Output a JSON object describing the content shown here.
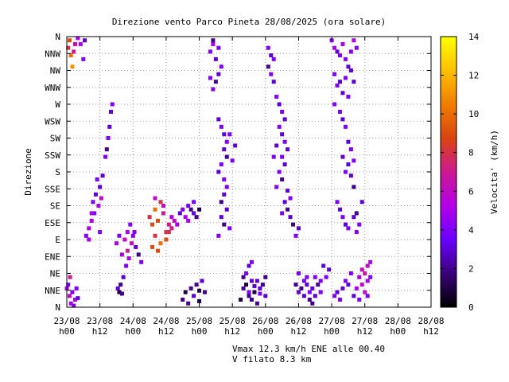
{
  "chart_data": {
    "type": "scatter",
    "title": "Direzione vento Parco Pineta 28/08/2025 (ora solare)",
    "ylabel": "Direzione",
    "y_categories": [
      "N",
      "NNE",
      "NE",
      "ENE",
      "E",
      "ESE",
      "SE",
      "SSE",
      "S",
      "SSW",
      "SW",
      "WSW",
      "W",
      "WNW",
      "NW",
      "NNW",
      "N"
    ],
    "x_ticks": [
      {
        "day": "23/08",
        "hour": "h00"
      },
      {
        "day": "23/08",
        "hour": "h12"
      },
      {
        "day": "24/08",
        "hour": "h00"
      },
      {
        "day": "24/08",
        "hour": "h12"
      },
      {
        "day": "25/08",
        "hour": "h00"
      },
      {
        "day": "25/08",
        "hour": "h12"
      },
      {
        "day": "26/08",
        "hour": "h00"
      },
      {
        "day": "26/08",
        "hour": "h12"
      },
      {
        "day": "27/08",
        "hour": "h00"
      },
      {
        "day": "27/08",
        "hour": "h12"
      },
      {
        "day": "28/08",
        "hour": "h00"
      },
      {
        "day": "28/08",
        "hour": "h12"
      }
    ],
    "xlim_hours": [
      0,
      132
    ],
    "ylim_deg": [
      0,
      360
    ],
    "grid": true,
    "colorbar": {
      "label": "Velocita' (km/h)",
      "min": 0,
      "max": 14,
      "ticks": [
        "0",
        "2",
        "4",
        "6",
        "8",
        "10",
        "12",
        "14"
      ],
      "colors": [
        "#000000",
        "#3a0078",
        "#6a00ff",
        "#b400e8",
        "#cc1a90",
        "#d94410",
        "#ef7e00",
        "#ffc000",
        "#ffff00"
      ]
    },
    "points": [
      [
        0.5,
        345,
        8
      ],
      [
        1,
        355,
        9
      ],
      [
        1.5,
        335,
        10
      ],
      [
        2,
        320,
        11
      ],
      [
        2.5,
        340,
        7
      ],
      [
        3,
        350,
        6
      ],
      [
        4,
        358,
        5
      ],
      [
        5,
        350,
        5
      ],
      [
        6,
        330,
        4
      ],
      [
        6.5,
        355,
        3
      ],
      [
        0.5,
        30,
        4
      ],
      [
        1,
        15,
        6
      ],
      [
        1.5,
        5,
        5
      ],
      [
        2,
        20,
        4
      ],
      [
        3,
        10,
        5
      ],
      [
        3.5,
        25,
        4
      ],
      [
        4,
        12,
        3
      ],
      [
        2.5,
        2,
        4
      ],
      [
        1.2,
        40,
        7
      ],
      [
        0,
        25,
        5
      ],
      [
        7,
        95,
        4
      ],
      [
        8,
        105,
        5
      ],
      [
        9,
        115,
        5
      ],
      [
        10,
        125,
        4
      ],
      [
        9.5,
        140,
        4
      ],
      [
        10.5,
        150,
        3
      ],
      [
        11,
        170,
        4
      ],
      [
        12,
        160,
        3
      ],
      [
        13,
        175,
        3
      ],
      [
        14,
        200,
        4
      ],
      [
        15,
        225,
        4
      ],
      [
        15.5,
        240,
        3
      ],
      [
        16,
        260,
        3
      ],
      [
        16.5,
        270,
        4
      ],
      [
        14.5,
        210,
        2
      ],
      [
        11.5,
        135,
        5
      ],
      [
        12.5,
        145,
        6
      ],
      [
        9,
        125,
        5
      ],
      [
        8,
        90,
        5
      ],
      [
        12,
        100,
        4
      ],
      [
        18,
        85,
        5
      ],
      [
        19,
        95,
        4
      ],
      [
        20,
        70,
        5
      ],
      [
        21,
        90,
        6
      ],
      [
        22,
        100,
        5
      ],
      [
        23,
        110,
        4
      ],
      [
        24,
        95,
        4
      ],
      [
        25,
        80,
        3
      ],
      [
        26,
        70,
        2
      ],
      [
        27,
        60,
        4
      ],
      [
        18.5,
        25,
        3
      ],
      [
        19.5,
        30,
        2
      ],
      [
        20.5,
        40,
        3
      ],
      [
        21.5,
        55,
        4
      ],
      [
        22.5,
        65,
        5
      ],
      [
        23.5,
        85,
        6
      ],
      [
        22,
        75,
        7
      ],
      [
        24.5,
        100,
        4
      ],
      [
        19,
        20,
        1
      ],
      [
        20,
        18,
        2
      ],
      [
        30,
        120,
        8
      ],
      [
        31,
        110,
        9
      ],
      [
        32,
        130,
        10
      ],
      [
        33,
        115,
        9
      ],
      [
        34,
        140,
        8
      ],
      [
        35,
        125,
        7
      ],
      [
        36,
        100,
        8
      ],
      [
        37,
        110,
        7
      ],
      [
        35,
        135,
        6
      ],
      [
        38,
        120,
        5
      ],
      [
        31,
        80,
        9
      ],
      [
        32,
        95,
        8
      ],
      [
        33,
        75,
        9
      ],
      [
        34,
        85,
        10
      ],
      [
        36,
        90,
        9
      ],
      [
        37,
        100,
        8
      ],
      [
        38,
        105,
        7
      ],
      [
        39,
        115,
        6
      ],
      [
        40,
        110,
        5
      ],
      [
        32,
        145,
        6
      ],
      [
        41,
        125,
        3
      ],
      [
        42,
        130,
        4
      ],
      [
        43,
        120,
        5
      ],
      [
        44,
        135,
        4
      ],
      [
        45,
        130,
        2
      ],
      [
        46,
        125,
        3
      ],
      [
        47,
        120,
        2
      ],
      [
        48,
        130,
        1
      ],
      [
        46,
        140,
        4
      ],
      [
        44,
        115,
        5
      ],
      [
        42,
        10,
        2
      ],
      [
        43,
        20,
        1
      ],
      [
        45,
        25,
        2
      ],
      [
        46,
        15,
        3
      ],
      [
        47,
        30,
        2
      ],
      [
        48,
        22,
        1
      ],
      [
        49,
        35,
        3
      ],
      [
        50,
        20,
        2
      ],
      [
        44,
        5,
        2
      ],
      [
        48,
        8,
        1
      ],
      [
        52,
        340,
        4
      ],
      [
        53,
        350,
        5
      ],
      [
        54,
        330,
        3
      ],
      [
        55,
        345,
        4
      ],
      [
        53,
        355,
        2
      ],
      [
        56,
        320,
        4
      ],
      [
        55,
        310,
        3
      ],
      [
        54,
        300,
        2
      ],
      [
        53,
        290,
        4
      ],
      [
        52,
        305,
        4
      ],
      [
        55,
        250,
        3
      ],
      [
        56,
        240,
        4
      ],
      [
        57,
        230,
        3
      ],
      [
        58,
        220,
        4
      ],
      [
        57,
        210,
        3
      ],
      [
        58,
        200,
        2
      ],
      [
        56,
        190,
        4
      ],
      [
        55,
        180,
        3
      ],
      [
        57,
        170,
        4
      ],
      [
        58,
        160,
        4
      ],
      [
        57,
        150,
        3
      ],
      [
        56,
        140,
        2
      ],
      [
        58,
        130,
        3
      ],
      [
        57,
        110,
        2
      ],
      [
        55,
        95,
        4
      ],
      [
        56,
        120,
        3
      ],
      [
        59,
        105,
        4
      ],
      [
        60,
        195,
        4
      ],
      [
        61,
        215,
        3
      ],
      [
        59,
        230,
        4
      ],
      [
        63,
        10,
        1
      ],
      [
        64,
        25,
        2
      ],
      [
        65,
        30,
        1
      ],
      [
        66,
        15,
        2
      ],
      [
        67,
        35,
        3
      ],
      [
        68,
        20,
        1
      ],
      [
        69,
        5,
        2
      ],
      [
        70,
        25,
        3
      ],
      [
        71,
        30,
        2
      ],
      [
        72,
        15,
        3
      ],
      [
        65,
        45,
        4
      ],
      [
        66,
        55,
        3
      ],
      [
        67,
        60,
        4
      ],
      [
        64,
        40,
        2
      ],
      [
        66,
        20,
        4
      ],
      [
        68,
        28,
        3
      ],
      [
        70,
        18,
        4
      ],
      [
        72,
        40,
        2
      ],
      [
        67,
        10,
        2
      ],
      [
        69,
        35,
        3
      ],
      [
        73,
        345,
        4
      ],
      [
        74,
        335,
        3
      ],
      [
        75,
        330,
        4
      ],
      [
        73,
        320,
        2
      ],
      [
        74,
        310,
        4
      ],
      [
        75,
        300,
        3
      ],
      [
        76,
        280,
        4
      ],
      [
        77,
        270,
        3
      ],
      [
        78,
        260,
        4
      ],
      [
        79,
        250,
        3
      ],
      [
        77,
        240,
        4
      ],
      [
        78,
        230,
        3
      ],
      [
        79,
        220,
        4
      ],
      [
        80,
        210,
        3
      ],
      [
        78,
        200,
        4
      ],
      [
        79,
        190,
        3
      ],
      [
        77,
        180,
        4
      ],
      [
        78,
        170,
        2
      ],
      [
        80,
        155,
        3
      ],
      [
        76,
        160,
        4
      ],
      [
        79,
        140,
        3
      ],
      [
        80,
        130,
        2
      ],
      [
        81,
        120,
        3
      ],
      [
        82,
        110,
        2
      ],
      [
        83,
        95,
        4
      ],
      [
        84,
        105,
        3
      ],
      [
        81,
        145,
        4
      ],
      [
        78,
        125,
        4
      ],
      [
        75,
        200,
        4
      ],
      [
        76,
        215,
        3
      ],
      [
        83,
        30,
        2
      ],
      [
        84,
        20,
        3
      ],
      [
        85,
        25,
        2
      ],
      [
        86,
        35,
        4
      ],
      [
        87,
        30,
        3
      ],
      [
        88,
        20,
        4
      ],
      [
        89,
        25,
        3
      ],
      [
        90,
        40,
        4
      ],
      [
        91,
        30,
        2
      ],
      [
        92,
        20,
        4
      ],
      [
        86,
        15,
        3
      ],
      [
        88,
        10,
        2
      ],
      [
        84,
        45,
        4
      ],
      [
        90,
        15,
        3
      ],
      [
        92,
        35,
        4
      ],
      [
        93,
        55,
        3
      ],
      [
        94,
        40,
        4
      ],
      [
        95,
        50,
        3
      ],
      [
        87,
        40,
        4
      ],
      [
        89,
        5,
        2
      ],
      [
        96,
        355,
        4
      ],
      [
        97,
        345,
        5
      ],
      [
        98,
        340,
        3
      ],
      [
        99,
        335,
        4
      ],
      [
        100,
        350,
        5
      ],
      [
        101,
        330,
        4
      ],
      [
        102,
        320,
        3
      ],
      [
        103,
        340,
        4
      ],
      [
        104,
        355,
        5
      ],
      [
        105,
        345,
        4
      ],
      [
        97,
        310,
        4
      ],
      [
        99,
        300,
        3
      ],
      [
        101,
        305,
        4
      ],
      [
        103,
        315,
        3
      ],
      [
        98,
        295,
        4
      ],
      [
        100,
        285,
        3
      ],
      [
        102,
        280,
        4
      ],
      [
        104,
        300,
        3
      ],
      [
        97,
        270,
        4
      ],
      [
        99,
        260,
        4
      ],
      [
        100,
        250,
        3
      ],
      [
        101,
        240,
        4
      ],
      [
        102,
        220,
        3
      ],
      [
        103,
        210,
        4
      ],
      [
        104,
        195,
        4
      ],
      [
        102,
        190,
        3
      ],
      [
        100,
        200,
        3
      ],
      [
        101,
        180,
        4
      ],
      [
        103,
        175,
        3
      ],
      [
        104,
        160,
        2
      ],
      [
        98,
        140,
        4
      ],
      [
        99,
        130,
        3
      ],
      [
        100,
        120,
        4
      ],
      [
        101,
        110,
        3
      ],
      [
        102,
        105,
        4
      ],
      [
        104,
        120,
        3
      ],
      [
        105,
        125,
        2
      ],
      [
        106,
        110,
        4
      ],
      [
        107,
        140,
        3
      ],
      [
        105,
        100,
        4
      ],
      [
        97,
        15,
        4
      ],
      [
        98,
        20,
        3
      ],
      [
        99,
        10,
        4
      ],
      [
        100,
        25,
        3
      ],
      [
        101,
        35,
        4
      ],
      [
        102,
        30,
        3
      ],
      [
        103,
        45,
        4
      ],
      [
        104,
        15,
        3
      ],
      [
        105,
        25,
        5
      ],
      [
        106,
        10,
        4
      ],
      [
        107,
        30,
        6
      ],
      [
        108,
        45,
        7
      ],
      [
        109,
        55,
        6
      ],
      [
        110,
        60,
        5
      ],
      [
        108,
        20,
        6
      ],
      [
        109,
        35,
        5
      ],
      [
        110,
        40,
        4
      ],
      [
        107,
        50,
        6
      ],
      [
        106,
        40,
        5
      ],
      [
        109,
        15,
        4
      ]
    ]
  },
  "footer": {
    "line1": "Vmax 12.3 km/h ENE alle 00.40",
    "line2": "V filato 8.3 km"
  }
}
